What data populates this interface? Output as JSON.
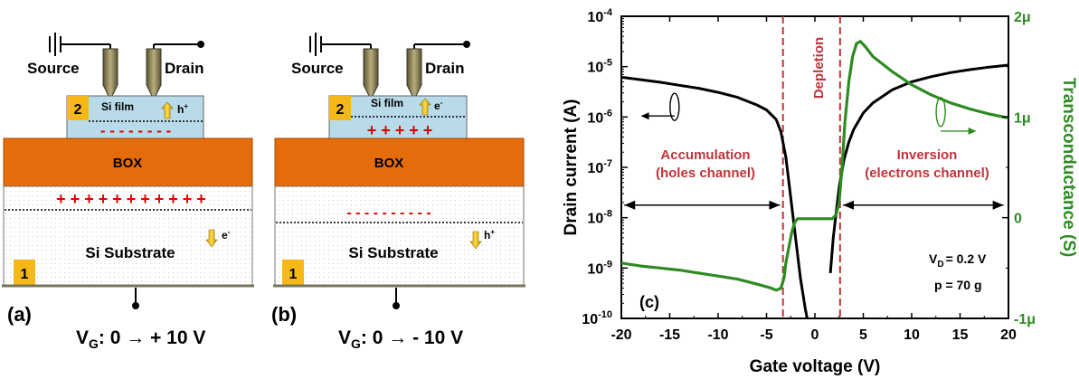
{
  "device_diagrams": [
    {
      "panel_label": "(a)",
      "source_label": "Source",
      "drain_label": "Drain",
      "region_2_label": "2",
      "si_film_label": "Si film",
      "film_carrier_label": "h",
      "film_carrier_sup": "+",
      "film_charge": "- - - - - - - -",
      "box_label": "BOX",
      "substrate_charge": "+ + + + + + + + + + +",
      "substrate_label": "Si Substrate",
      "substrate_carrier_label": "e",
      "substrate_carrier_sup": "-",
      "region_1_label": "1",
      "gate_voltage_prefix": "V",
      "gate_voltage_sub": "G",
      "gate_voltage_text": ": 0 → + 10 V"
    },
    {
      "panel_label": "(b)",
      "source_label": "Source",
      "drain_label": "Drain",
      "region_2_label": "2",
      "si_film_label": "Si film",
      "film_carrier_label": "e",
      "film_carrier_sup": "-",
      "film_charge": "+ + + + +",
      "box_label": "BOX",
      "substrate_charge": "- - - - - - - - - -",
      "substrate_label": "Si Substrate",
      "substrate_carrier_label": "h",
      "substrate_carrier_sup": "+",
      "region_1_label": "1",
      "gate_voltage_prefix": "V",
      "gate_voltage_sub": "G",
      "gate_voltage_text": ": 0 → - 10 V"
    }
  ],
  "chart_data": {
    "type": "line",
    "panel_label": "(c)",
    "xlabel": "Gate voltage (V)",
    "ylabel_left": "Drain current (A)",
    "ylabel_right": "Transconductance (S)",
    "xlim": [
      -20,
      20
    ],
    "x_ticks": [
      -20,
      -15,
      -10,
      -5,
      0,
      5,
      10,
      15,
      20
    ],
    "ylim_left_log": [
      -10,
      -4
    ],
    "y_ticks_left": [
      {
        "base": "10",
        "exp": "-10",
        "v": -10
      },
      {
        "base": "10",
        "exp": "-9",
        "v": -9
      },
      {
        "base": "10",
        "exp": "-8",
        "v": -8
      },
      {
        "base": "10",
        "exp": "-7",
        "v": -7
      },
      {
        "base": "10",
        "exp": "-6",
        "v": -6
      },
      {
        "base": "10",
        "exp": "-5",
        "v": -5
      },
      {
        "base": "10",
        "exp": "-4",
        "v": -4
      }
    ],
    "ylim_right": [
      -1,
      2
    ],
    "y_ticks_right": [
      {
        "label": "-1μ",
        "v": -1
      },
      {
        "label": "0",
        "v": 0
      },
      {
        "label": "1μ",
        "v": 1
      },
      {
        "label": "2μ",
        "v": 2
      }
    ],
    "log_y_left": true,
    "colors": {
      "drain_current": "#000000",
      "transconductance": "#2e8b22",
      "depletion": "#c0343a",
      "right_axis": "#2e8b22"
    },
    "depletion_lines_x": [
      -3.3,
      2.6
    ],
    "depletion_label": "Depletion",
    "accumulation_label_1": "Accumulation",
    "accumulation_label_2": "(holes channel)",
    "inversion_label_1": "Inversion",
    "inversion_label_2": "(electrons channel)",
    "vd_label": "V",
    "vd_sub": "D",
    "vd_value": "= 0.2 V",
    "p_label": "p = 70 g",
    "series": [
      {
        "axis": "left",
        "x": [
          -20,
          -18,
          -16,
          -14,
          -12,
          -10,
          -8,
          -6,
          -5,
          -4,
          -3.5,
          -3,
          -2.5,
          -2,
          -1.5,
          -1,
          -0.5
        ],
        "log10_y": [
          -5.21,
          -5.26,
          -5.31,
          -5.37,
          -5.43,
          -5.51,
          -5.61,
          -5.76,
          -5.86,
          -6.05,
          -6.3,
          -6.8,
          -7.6,
          -8.4,
          -9.2,
          -9.8,
          -10.3
        ]
      },
      {
        "axis": "left",
        "x": [
          1.6,
          1.9,
          2.2,
          2.5,
          3.0,
          3.5,
          4.0,
          5.0,
          6.0,
          8.0,
          10.0,
          12.0,
          14.0,
          16.0,
          18.0,
          20.0
        ],
        "log10_y": [
          -9.1,
          -8.4,
          -7.9,
          -7.4,
          -6.85,
          -6.5,
          -6.25,
          -5.92,
          -5.72,
          -5.46,
          -5.3,
          -5.2,
          -5.12,
          -5.06,
          -5.01,
          -4.97
        ]
      },
      {
        "axis": "right",
        "x": [
          -20,
          -18,
          -16,
          -14,
          -12,
          -10,
          -8,
          -6,
          -4.5,
          -4,
          -3.5,
          -3.2,
          -3,
          -2.7,
          -2.4,
          -2.1,
          -1.8,
          -1,
          0,
          1,
          1.8,
          2.2,
          2.5,
          2.8,
          3.1,
          3.5,
          3.9,
          4.3,
          4.7,
          5.2,
          6,
          8,
          10,
          12,
          14,
          16,
          18,
          20
        ],
        "y": [
          -0.45,
          -0.48,
          -0.5,
          -0.52,
          -0.55,
          -0.58,
          -0.61,
          -0.66,
          -0.7,
          -0.72,
          -0.7,
          -0.6,
          -0.45,
          -0.3,
          -0.15,
          -0.05,
          -0.01,
          -0.01,
          -0.01,
          -0.01,
          -0.01,
          0.03,
          0.15,
          0.5,
          0.95,
          1.35,
          1.6,
          1.73,
          1.75,
          1.7,
          1.6,
          1.45,
          1.32,
          1.22,
          1.14,
          1.08,
          1.03,
          0.99
        ]
      }
    ]
  }
}
